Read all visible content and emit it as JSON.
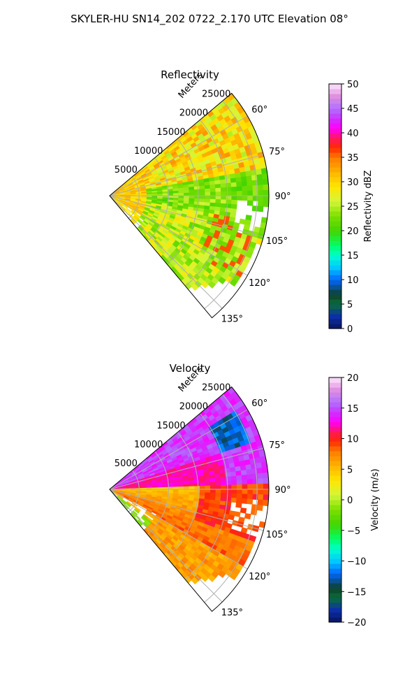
{
  "figure": {
    "title": "SKYLER-HU  SN14_202  0722_2.170 UTC Elevation 08°"
  },
  "chart_data": [
    {
      "type": "heatmap",
      "title": "Reflectivity",
      "radial_axis_label": "Meters",
      "radial_ticks": [
        5000,
        10000,
        15000,
        20000,
        25000
      ],
      "radial_tick_labels": [
        "5000",
        "10000",
        "15000",
        "20000",
        "25000"
      ],
      "r_max": 27000,
      "azimuth_range_deg": [
        50,
        140
      ],
      "azimuth_ticks": [
        60,
        75,
        90,
        105,
        120,
        135
      ],
      "azimuth_tick_labels": [
        "60°",
        "75°",
        "90°",
        "105°",
        "120°",
        "135°"
      ],
      "grid": true,
      "colorbar": {
        "label": "Reflectivity dBZ",
        "range": [
          0,
          50
        ],
        "ticks": [
          0,
          5,
          10,
          15,
          20,
          25,
          30,
          35,
          40,
          45,
          50
        ],
        "tick_labels": [
          "0",
          "5",
          "10",
          "15",
          "20",
          "25",
          "30",
          "35",
          "40",
          "45",
          "50"
        ]
      },
      "field_summary": [
        {
          "region": "near radar (0-6000 m)",
          "value_range": [
            30,
            38
          ]
        },
        {
          "region": "northern sector (50-80°)",
          "value_range": [
            25,
            36
          ]
        },
        {
          "region": "central sector (80-105°)",
          "value_range": [
            18,
            27
          ]
        },
        {
          "region": "southern sector (105-140°)",
          "value_range": [
            20,
            33
          ]
        }
      ]
    },
    {
      "type": "heatmap",
      "title": "Velocity",
      "radial_axis_label": "Meters",
      "radial_ticks": [
        5000,
        10000,
        15000,
        20000,
        25000
      ],
      "radial_tick_labels": [
        "5000",
        "10000",
        "15000",
        "20000",
        "25000"
      ],
      "r_max": 27000,
      "azimuth_range_deg": [
        50,
        140
      ],
      "azimuth_ticks": [
        60,
        75,
        90,
        105,
        120,
        135
      ],
      "azimuth_tick_labels": [
        "60°",
        "75°",
        "90°",
        "105°",
        "120°",
        "135°"
      ],
      "grid": true,
      "colorbar": {
        "label": "Velocity (m/s)",
        "range": [
          -20,
          20
        ],
        "ticks": [
          -20,
          -15,
          -10,
          -5,
          0,
          5,
          10,
          15,
          20
        ],
        "tick_labels": [
          "−20",
          "−15",
          "−10",
          "−5",
          "0",
          "5",
          "10",
          "15",
          "20"
        ]
      },
      "field_summary": [
        {
          "region": "northern sector (50-88°)",
          "value_range": [
            13,
            16
          ]
        },
        {
          "region": "folded patch near 65°, 20000-25000 m",
          "value_range": [
            -16,
            -12
          ]
        },
        {
          "region": "southern sector (90-140°)",
          "value_range": [
            3,
            10
          ]
        },
        {
          "region": "near-radar southern edge",
          "value_range": [
            -3,
            0
          ]
        }
      ]
    }
  ]
}
